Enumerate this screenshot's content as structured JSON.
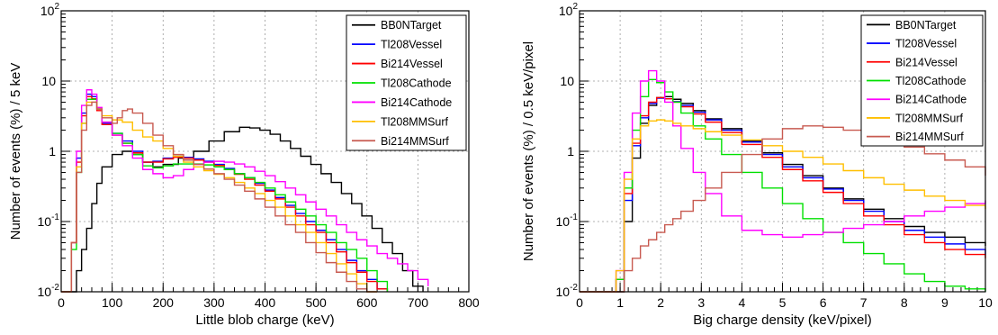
{
  "chart_data": [
    {
      "type": "line",
      "style": "step-histogram",
      "title": "",
      "xlabel": "Little blob charge (keV)",
      "ylabel": "Number of events (%) / 5 keV",
      "xlim": [
        0,
        800
      ],
      "ylim": [
        0.01,
        100
      ],
      "yscale": "log",
      "grid": true,
      "legend_position": "top-right",
      "xticks": [
        0,
        100,
        200,
        300,
        400,
        500,
        600,
        700,
        800
      ],
      "yticks": [
        {
          "value": 0.01,
          "mant": "10",
          "exp": "-2"
        },
        {
          "value": 0.1,
          "mant": "10",
          "exp": "-1"
        },
        {
          "value": 1,
          "mant": "1",
          "exp": ""
        },
        {
          "value": 10,
          "mant": "10",
          "exp": ""
        },
        {
          "value": 100,
          "mant": "10",
          "exp": "2"
        }
      ],
      "series": [
        {
          "name": "BB0NTarget",
          "color": "#000000",
          "x": [
            0,
            20,
            30,
            40,
            50,
            60,
            70,
            80,
            100,
            120,
            140,
            160,
            180,
            200,
            230,
            260,
            290,
            320,
            350,
            370,
            390,
            410,
            430,
            450,
            470,
            490,
            510,
            530,
            550,
            570,
            590,
            610,
            630,
            650,
            670,
            690,
            710
          ],
          "y": [
            0.01,
            0.01,
            0.02,
            0.04,
            0.08,
            0.18,
            0.35,
            0.6,
            0.9,
            1.0,
            0.9,
            0.7,
            0.6,
            0.65,
            0.8,
            1.0,
            1.4,
            1.9,
            2.2,
            2.15,
            2.0,
            1.75,
            1.4,
            1.1,
            0.85,
            0.65,
            0.48,
            0.36,
            0.25,
            0.18,
            0.12,
            0.08,
            0.05,
            0.035,
            0.02,
            0.012,
            0.01
          ]
        },
        {
          "name": "Tl208Vessel",
          "color": "#0000ff",
          "x": [
            0,
            20,
            30,
            40,
            50,
            60,
            70,
            80,
            100,
            120,
            140,
            160,
            180,
            200,
            220,
            240,
            260,
            280,
            300,
            320,
            340,
            360,
            380,
            400,
            420,
            440,
            460,
            480,
            500,
            520,
            540,
            560,
            580,
            600,
            620,
            640
          ],
          "y": [
            0.01,
            0.05,
            0.8,
            3.5,
            6.5,
            6.0,
            4.0,
            2.5,
            1.8,
            1.4,
            1.0,
            0.7,
            0.72,
            0.8,
            0.85,
            0.82,
            0.78,
            0.72,
            0.65,
            0.57,
            0.48,
            0.42,
            0.35,
            0.28,
            0.22,
            0.17,
            0.13,
            0.1,
            0.075,
            0.055,
            0.04,
            0.028,
            0.02,
            0.015,
            0.011,
            0.01
          ]
        },
        {
          "name": "Bi214Vessel",
          "color": "#ff0000",
          "x": [
            0,
            20,
            30,
            40,
            50,
            60,
            70,
            80,
            100,
            120,
            140,
            160,
            180,
            200,
            220,
            240,
            260,
            280,
            300,
            320,
            340,
            360,
            380,
            400,
            420,
            440,
            460,
            480,
            500,
            520,
            540,
            560,
            580,
            600,
            620,
            640
          ],
          "y": [
            0.01,
            0.05,
            0.7,
            3.2,
            6.0,
            5.6,
            3.8,
            2.4,
            1.7,
            1.3,
            0.95,
            0.7,
            0.7,
            0.78,
            0.82,
            0.8,
            0.75,
            0.7,
            0.63,
            0.55,
            0.47,
            0.4,
            0.33,
            0.27,
            0.21,
            0.16,
            0.12,
            0.09,
            0.07,
            0.05,
            0.037,
            0.026,
            0.019,
            0.014,
            0.011,
            0.01
          ]
        },
        {
          "name": "Tl208Cathode",
          "color": "#00e000",
          "x": [
            0,
            20,
            30,
            40,
            50,
            60,
            70,
            80,
            100,
            120,
            140,
            160,
            180,
            200,
            220,
            240,
            260,
            280,
            300,
            320,
            340,
            360,
            380,
            400,
            420,
            440,
            460,
            480,
            500,
            520,
            540,
            560,
            580,
            600,
            620,
            640
          ],
          "y": [
            0.01,
            0.04,
            0.5,
            2.5,
            5.5,
            5.5,
            4.0,
            2.6,
            1.8,
            1.3,
            0.9,
            0.62,
            0.58,
            0.62,
            0.66,
            0.66,
            0.66,
            0.64,
            0.6,
            0.55,
            0.48,
            0.42,
            0.36,
            0.3,
            0.24,
            0.19,
            0.15,
            0.12,
            0.09,
            0.07,
            0.05,
            0.04,
            0.03,
            0.02,
            0.014,
            0.01
          ]
        },
        {
          "name": "Bi214Cathode",
          "color": "#ff00ff",
          "x": [
            0,
            20,
            30,
            40,
            50,
            60,
            70,
            80,
            100,
            120,
            140,
            160,
            180,
            200,
            220,
            240,
            260,
            280,
            300,
            320,
            340,
            360,
            380,
            400,
            420,
            440,
            460,
            480,
            500,
            520,
            540,
            560,
            580,
            600,
            620,
            640,
            660,
            680,
            700,
            720
          ],
          "y": [
            0.01,
            0.05,
            1.0,
            4.5,
            7.5,
            6.5,
            4.2,
            2.6,
            1.7,
            1.2,
            0.8,
            0.55,
            0.48,
            0.42,
            0.45,
            0.55,
            0.65,
            0.7,
            0.72,
            0.7,
            0.66,
            0.6,
            0.52,
            0.45,
            0.37,
            0.3,
            0.24,
            0.19,
            0.15,
            0.12,
            0.09,
            0.07,
            0.055,
            0.045,
            0.035,
            0.03,
            0.025,
            0.02,
            0.015,
            0.012
          ]
        },
        {
          "name": "Tl208MMSurf",
          "color": "#ffbf00",
          "x": [
            0,
            20,
            30,
            40,
            50,
            60,
            70,
            80,
            100,
            120,
            140,
            160,
            180,
            200,
            220,
            240,
            260,
            280,
            300,
            320,
            340,
            360,
            380,
            400,
            420,
            440,
            460,
            480,
            500,
            520,
            540,
            560,
            580,
            600,
            620
          ],
          "y": [
            0.01,
            0.05,
            0.6,
            2.5,
            5.0,
            5.0,
            4.0,
            3.2,
            2.8,
            2.6,
            2.0,
            1.6,
            1.4,
            1.1,
            0.85,
            0.7,
            0.6,
            0.53,
            0.47,
            0.42,
            0.36,
            0.3,
            0.25,
            0.2,
            0.16,
            0.12,
            0.09,
            0.07,
            0.05,
            0.035,
            0.025,
            0.018,
            0.013,
            0.01,
            0.01
          ]
        },
        {
          "name": "Bi214MMSurf",
          "color": "#c85a50",
          "x": [
            0,
            20,
            30,
            40,
            50,
            60,
            70,
            80,
            100,
            110,
            120,
            130,
            140,
            160,
            180,
            200,
            220,
            240,
            260,
            280,
            300,
            320,
            340,
            360,
            380,
            400,
            420,
            440,
            460,
            480,
            500,
            520,
            540,
            560,
            580,
            600,
            620
          ],
          "y": [
            0.01,
            0.05,
            0.5,
            2.0,
            4.5,
            5.0,
            4.0,
            3.0,
            2.5,
            3.0,
            3.8,
            4.0,
            3.5,
            2.5,
            1.7,
            1.2,
            0.9,
            0.75,
            0.65,
            0.56,
            0.48,
            0.4,
            0.33,
            0.27,
            0.21,
            0.16,
            0.12,
            0.09,
            0.07,
            0.05,
            0.036,
            0.026,
            0.019,
            0.014,
            0.011,
            0.01,
            0.01
          ]
        }
      ]
    },
    {
      "type": "line",
      "style": "step-histogram",
      "title": "",
      "xlabel": "Big charge density (keV/pixel)",
      "ylabel": "Number of events (%) / 0.5 keV/pixel",
      "xlim": [
        0,
        10
      ],
      "ylim": [
        0.01,
        100
      ],
      "yscale": "log",
      "grid": true,
      "legend_position": "top-right",
      "xticks": [
        0,
        1,
        2,
        3,
        4,
        5,
        6,
        7,
        8,
        9,
        10
      ],
      "yticks": [
        {
          "value": 0.01,
          "mant": "10",
          "exp": "-2"
        },
        {
          "value": 0.1,
          "mant": "10",
          "exp": "-1"
        },
        {
          "value": 1,
          "mant": "1",
          "exp": ""
        },
        {
          "value": 10,
          "mant": "10",
          "exp": ""
        },
        {
          "value": 100,
          "mant": "10",
          "exp": "2"
        }
      ],
      "series": [
        {
          "name": "BB0NTarget",
          "color": "#000000",
          "x": [
            0,
            0.9,
            1.1,
            1.3,
            1.5,
            1.7,
            1.9,
            2.1,
            2.3,
            2.5,
            2.8,
            3.1,
            3.5,
            4,
            4.5,
            5,
            5.5,
            6,
            6.5,
            7,
            7.5,
            8,
            8.5,
            9,
            9.5,
            10
          ],
          "y": [
            0.01,
            0.01,
            0.1,
            0.8,
            2.5,
            4.5,
            5.8,
            6.0,
            5.5,
            4.8,
            3.8,
            2.9,
            2.1,
            1.4,
            0.95,
            0.65,
            0.45,
            0.3,
            0.21,
            0.15,
            0.11,
            0.085,
            0.07,
            0.06,
            0.05,
            0.045
          ]
        },
        {
          "name": "Tl208Vessel",
          "color": "#0000ff",
          "x": [
            0,
            0.9,
            1.1,
            1.3,
            1.5,
            1.7,
            1.9,
            2.1,
            2.3,
            2.5,
            2.8,
            3.1,
            3.5,
            4,
            4.5,
            5,
            5.5,
            6,
            6.5,
            7,
            7.5,
            8,
            8.5,
            9,
            9.5,
            10
          ],
          "y": [
            0.01,
            0.015,
            0.2,
            1.2,
            3.0,
            4.8,
            5.7,
            5.6,
            5.1,
            4.5,
            3.6,
            2.8,
            2.0,
            1.35,
            0.9,
            0.6,
            0.42,
            0.29,
            0.2,
            0.14,
            0.1,
            0.075,
            0.06,
            0.048,
            0.04,
            0.034
          ]
        },
        {
          "name": "Bi214Vessel",
          "color": "#ff0000",
          "x": [
            0,
            0.9,
            1.1,
            1.3,
            1.5,
            1.7,
            1.9,
            2.1,
            2.3,
            2.5,
            2.8,
            3.1,
            3.5,
            4,
            4.5,
            5,
            5.5,
            6,
            6.5,
            7,
            7.5,
            8,
            8.5,
            9,
            9.5,
            10
          ],
          "y": [
            0.01,
            0.015,
            0.25,
            1.3,
            3.2,
            5.0,
            5.8,
            5.6,
            5.0,
            4.3,
            3.4,
            2.6,
            1.85,
            1.25,
            0.82,
            0.55,
            0.38,
            0.26,
            0.18,
            0.12,
            0.09,
            0.065,
            0.05,
            0.04,
            0.034,
            0.03
          ]
        },
        {
          "name": "Tl208Cathode",
          "color": "#00e000",
          "x": [
            0,
            0.9,
            1.1,
            1.3,
            1.5,
            1.7,
            1.9,
            2.1,
            2.3,
            2.5,
            2.8,
            3.1,
            3.5,
            4,
            4.5,
            5,
            5.5,
            6,
            6.5,
            7,
            7.5,
            8,
            8.5,
            9,
            9.5,
            10
          ],
          "y": [
            0.01,
            0.015,
            0.3,
            2.0,
            6.0,
            10.5,
            9.5,
            7.0,
            5.0,
            3.5,
            2.3,
            1.5,
            0.9,
            0.5,
            0.3,
            0.18,
            0.11,
            0.07,
            0.05,
            0.035,
            0.025,
            0.018,
            0.014,
            0.012,
            0.011,
            0.01
          ]
        },
        {
          "name": "Bi214Cathode",
          "color": "#ff00ff",
          "x": [
            0,
            0.9,
            1.1,
            1.3,
            1.5,
            1.7,
            1.9,
            2.1,
            2.3,
            2.5,
            2.8,
            3.1,
            3.5,
            4,
            4.5,
            5,
            5.5,
            6,
            6.5,
            7,
            7.5,
            8,
            8.5,
            9,
            9.5,
            10
          ],
          "y": [
            0.01,
            0.02,
            0.5,
            3.5,
            10.0,
            14.0,
            10.0,
            5.0,
            2.3,
            1.1,
            0.5,
            0.25,
            0.12,
            0.075,
            0.065,
            0.06,
            0.065,
            0.07,
            0.08,
            0.09,
            0.1,
            0.12,
            0.14,
            0.16,
            0.18,
            0.2
          ]
        },
        {
          "name": "Tl208MMSurf",
          "color": "#ffbf00",
          "x": [
            0,
            0.9,
            1.1,
            1.3,
            1.5,
            1.7,
            1.9,
            2.1,
            2.3,
            2.5,
            2.8,
            3.1,
            3.5,
            4,
            4.5,
            5,
            5.5,
            6,
            6.5,
            7,
            7.5,
            8,
            8.5,
            9,
            9.5,
            10
          ],
          "y": [
            0.01,
            0.02,
            0.4,
            1.5,
            2.3,
            2.7,
            2.8,
            2.7,
            2.5,
            2.3,
            2.1,
            1.9,
            1.7,
            1.45,
            1.2,
            1.0,
            0.82,
            0.66,
            0.53,
            0.42,
            0.34,
            0.28,
            0.23,
            0.2,
            0.17,
            0.15
          ]
        },
        {
          "name": "Bi214MMSurf",
          "color": "#c85a50",
          "x": [
            0,
            0.9,
            1.1,
            1.3,
            1.5,
            1.7,
            1.9,
            2.1,
            2.3,
            2.5,
            2.8,
            3.1,
            3.5,
            4,
            4.5,
            5,
            5.5,
            6,
            6.5,
            7,
            7.5,
            8,
            8.5,
            9,
            9.5,
            10
          ],
          "y": [
            0.01,
            0.01,
            0.02,
            0.03,
            0.045,
            0.055,
            0.07,
            0.09,
            0.11,
            0.14,
            0.2,
            0.3,
            0.5,
            0.9,
            1.5,
            2.1,
            2.3,
            2.2,
            2.0,
            1.7,
            1.4,
            1.15,
            0.92,
            0.75,
            0.6,
            0.45
          ]
        }
      ]
    }
  ]
}
